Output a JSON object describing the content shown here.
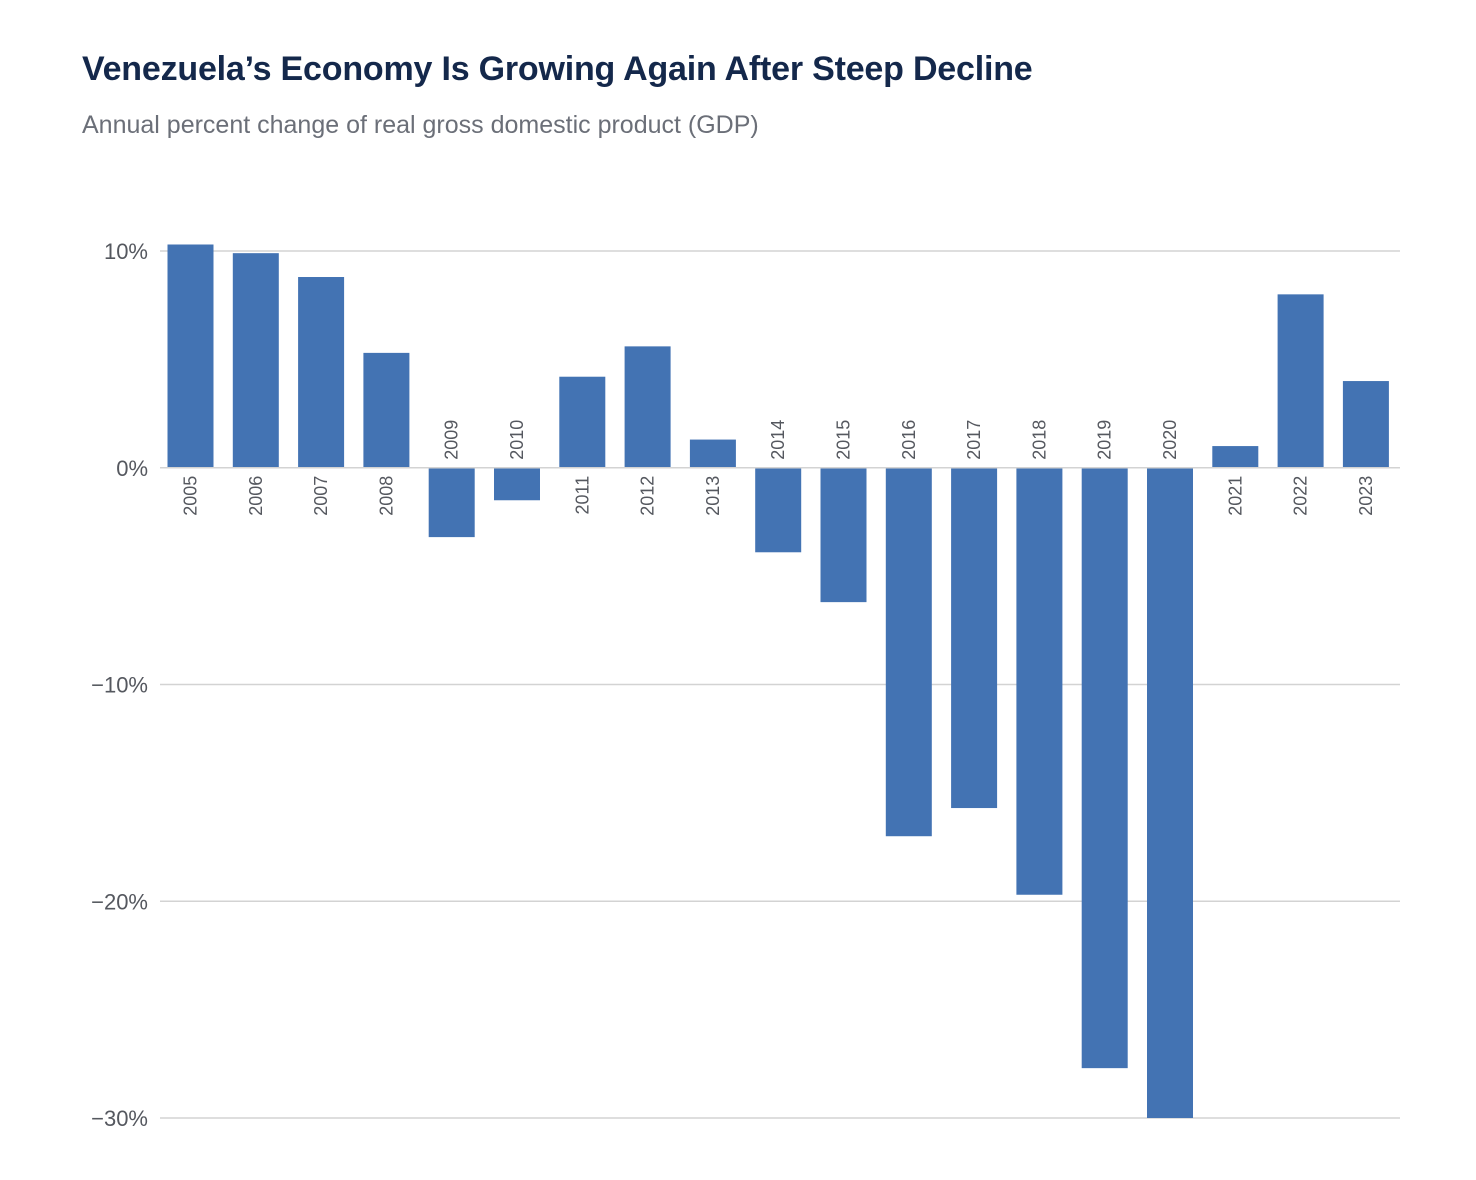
{
  "chart_data": {
    "type": "bar",
    "title": "Venezuela’s Economy Is Growing Again After Steep Decline",
    "subtitle": "Annual percent change of real gross domestic product (GDP)",
    "categories": [
      "2005",
      "2006",
      "2007",
      "2008",
      "2009",
      "2010",
      "2011",
      "2012",
      "2013",
      "2014",
      "2015",
      "2016",
      "2017",
      "2018",
      "2019",
      "2020",
      "2021",
      "2022",
      "2023"
    ],
    "values": [
      10.3,
      9.9,
      8.8,
      5.3,
      -3.2,
      -1.5,
      4.2,
      5.6,
      1.3,
      -3.9,
      -6.2,
      -17.0,
      -15.7,
      -19.7,
      -27.7,
      -30.0,
      1.0,
      8.0,
      4.0
    ],
    "ylim": [
      -30,
      10
    ],
    "yticks": [
      {
        "value": 10,
        "label": "10%"
      },
      {
        "value": 0,
        "label": "0%"
      },
      {
        "value": -10,
        "label": "−10%"
      },
      {
        "value": -20,
        "label": "−20%"
      },
      {
        "value": -30,
        "label": "−30%"
      }
    ],
    "grid": true,
    "bar_color": "#4373b3",
    "xlabel": "",
    "ylabel": ""
  }
}
